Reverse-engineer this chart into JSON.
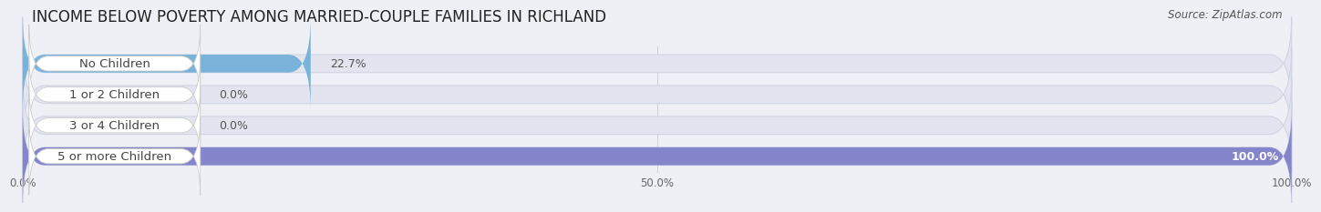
{
  "title": "INCOME BELOW POVERTY AMONG MARRIED-COUPLE FAMILIES IN RICHLAND",
  "source": "Source: ZipAtlas.com",
  "categories": [
    "No Children",
    "1 or 2 Children",
    "3 or 4 Children",
    "5 or more Children"
  ],
  "values": [
    22.7,
    0.0,
    0.0,
    100.0
  ],
  "bar_colors": [
    "#7ab3d9",
    "#c4a0bf",
    "#62c4be",
    "#8585cc"
  ],
  "background_color": "#eef0f5",
  "bar_background": "#e2e5ef",
  "bar_edge_color": "#d0d4e2",
  "label_box_color": "white",
  "text_color": "#444444",
  "value_color_outside": "#555555",
  "value_color_inside": "white",
  "xtick_labels": [
    "0.0%",
    "50.0%",
    "100.0%"
  ],
  "xticks": [
    0,
    50,
    100
  ],
  "title_fontsize": 12,
  "label_fontsize": 9.5,
  "value_fontsize": 9,
  "source_fontsize": 8.5,
  "xtick_fontsize": 8.5,
  "bar_height": 0.58,
  "figsize": [
    14.06,
    2.32
  ],
  "dpi": 100
}
